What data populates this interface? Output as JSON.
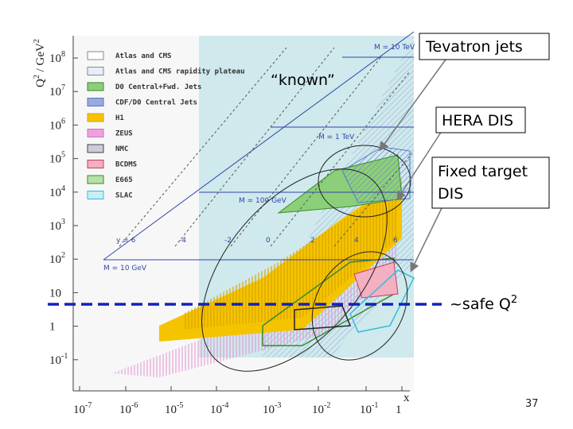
{
  "figure": {
    "y_axis_label": {
      "base": "Q",
      "exp1": "2",
      "mid": " / GeV",
      "exp2": "2"
    },
    "x_axis_label": "x",
    "x_ticks": [
      {
        "base": "10",
        "exp": "-7"
      },
      {
        "base": "10",
        "exp": "-6"
      },
      {
        "base": "10",
        "exp": "-5"
      },
      {
        "base": "10",
        "exp": "-4"
      },
      {
        "base": "10",
        "exp": "-3"
      },
      {
        "base": "10",
        "exp": "-2"
      },
      {
        "base": "10",
        "exp": "-1"
      },
      {
        "base": "1",
        "exp": ""
      }
    ],
    "y_ticks": [
      {
        "base": "10",
        "exp": "8"
      },
      {
        "base": "10",
        "exp": "7"
      },
      {
        "base": "10",
        "exp": "6"
      },
      {
        "base": "10",
        "exp": "5"
      },
      {
        "base": "10",
        "exp": "4"
      },
      {
        "base": "10",
        "exp": "3"
      },
      {
        "base": "10",
        "exp": "2"
      },
      {
        "base": "10",
        "exp": ""
      },
      {
        "base": "1",
        "exp": ""
      },
      {
        "base": "10",
        "exp": "-1"
      }
    ],
    "legend": [
      "Atlas and CMS",
      "Atlas and CMS rapidity plateau",
      "D0 Central+Fwd. Jets",
      "CDF/D0 Central Jets",
      "H1",
      "ZEUS",
      "NMC",
      "BCDMS",
      "E665",
      "SLAC"
    ],
    "mass_lines": [
      "M = 10 TeV",
      "M = 1 TeV",
      "M = 100 GeV",
      "M = 10 GeV"
    ],
    "rapidity_lines": [
      "y = 6",
      "-4",
      "-2",
      "0",
      "2",
      "4",
      "6"
    ]
  },
  "annotations": {
    "tevatron": "Tevatron jets",
    "known": "“known”",
    "hera": "HERA DIS",
    "fixed_line1": "Fixed target",
    "fixed_line2": "DIS",
    "safe": {
      "text": "~safe Q",
      "exp": "2"
    }
  },
  "slide_number": "37"
}
